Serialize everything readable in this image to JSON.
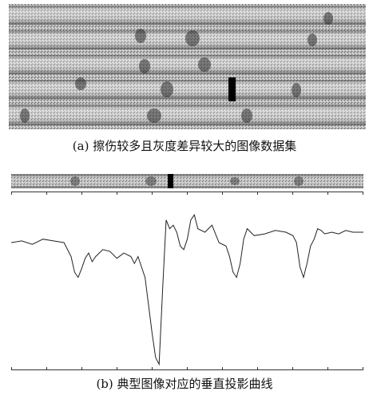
{
  "figure": {
    "caption_a": "(a) 擦伤较多且灰度差异较大的图像数据集",
    "caption_b": "(b) 典型图像对应的垂直投影曲线",
    "dataset_image": "scratched-rail-image-dataset",
    "strip_image": "typical-rail-image-strip"
  },
  "chart_data": {
    "type": "line",
    "title": "",
    "xlabel": "",
    "ylabel": "",
    "grid": false,
    "xlim": [
      0,
      100
    ],
    "ylim": [
      0,
      100
    ],
    "series": [
      {
        "x": [
          0,
          3,
          6,
          9,
          12,
          15,
          17,
          18,
          19,
          20,
          21,
          22,
          23,
          24,
          26,
          28,
          30,
          32,
          34,
          35,
          36,
          37,
          38,
          39,
          40,
          41,
          42,
          43,
          44,
          45,
          46,
          47,
          48,
          49,
          50,
          51,
          52,
          53,
          55,
          57,
          59,
          61,
          62,
          63,
          64,
          65,
          66,
          67,
          68,
          69,
          72,
          75,
          78,
          80,
          81,
          82,
          83,
          84,
          85,
          86,
          87,
          88,
          89,
          91,
          93,
          95,
          97,
          100
        ],
        "values": [
          72,
          73,
          71,
          74,
          73,
          72,
          64,
          55,
          52,
          57,
          63,
          66,
          61,
          64,
          68,
          67,
          63,
          66,
          64,
          60,
          64,
          58,
          52,
          36,
          20,
          6,
          2,
          45,
          85,
          80,
          82,
          78,
          70,
          68,
          74,
          85,
          88,
          80,
          78,
          82,
          72,
          70,
          64,
          55,
          52,
          60,
          74,
          80,
          78,
          76,
          77,
          79,
          78,
          76,
          72,
          58,
          52,
          60,
          70,
          74,
          80,
          79,
          77,
          78,
          77,
          79,
          78,
          78
        ]
      }
    ],
    "tick_count": 11
  }
}
